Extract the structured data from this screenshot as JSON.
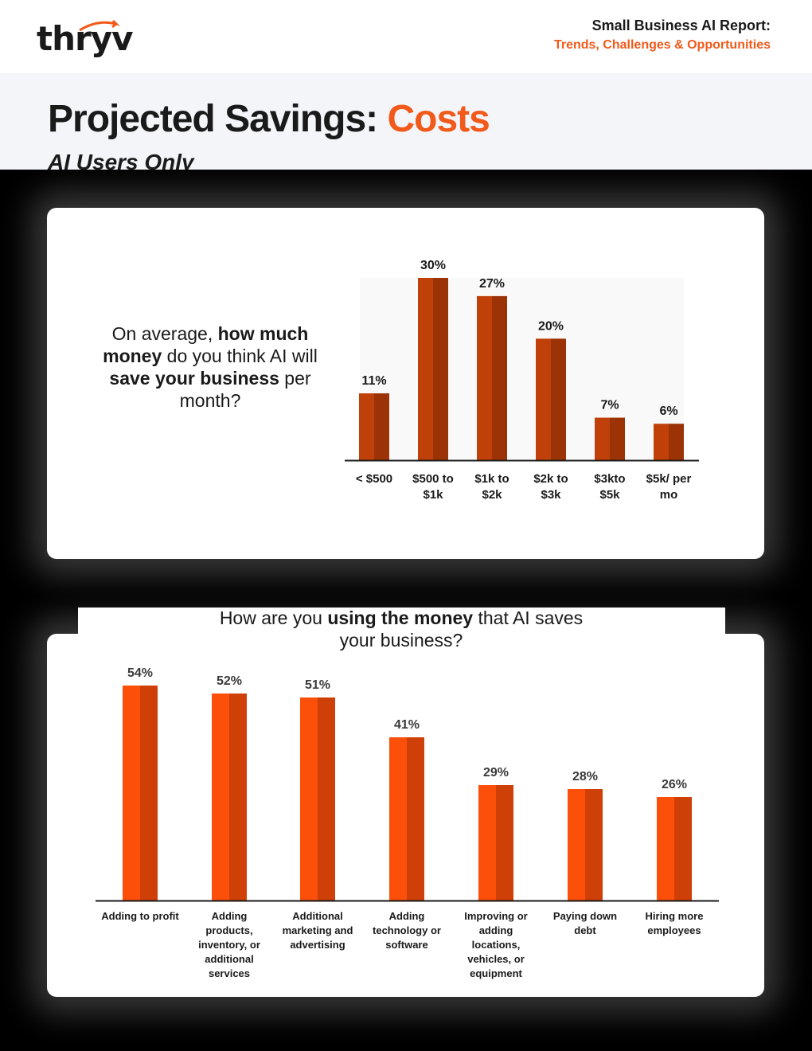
{
  "header": {
    "logo_text": "thryv",
    "report_title": "Small Business AI Report:",
    "report_subtitle": "Trends, Challenges & Opportunities"
  },
  "page": {
    "title_main": "Projected Savings: ",
    "title_accent": "Costs",
    "subtitle": "AI Users Only"
  },
  "colors": {
    "accent": "#f15a1a",
    "bar1": "#c0400a",
    "bar1_dark": "#9c3307",
    "bar2": "#fb4f0a",
    "bar2_dark": "#cf4008"
  },
  "chart_data": [
    {
      "type": "bar",
      "title": "On average, how much money do you think AI will save your business per month?",
      "title_parts": [
        "On average, ",
        "how much money",
        " do you think AI will ",
        "save your business",
        " per month?"
      ],
      "categories": [
        [
          "< $500"
        ],
        [
          "$500 to",
          "$1k"
        ],
        [
          "$1k to",
          "$2k"
        ],
        [
          "$2k to",
          "$3k"
        ],
        [
          "$3kto",
          "$5k"
        ],
        [
          "$5k/ per",
          "mo"
        ]
      ],
      "values": [
        11,
        30,
        27,
        20,
        7,
        6
      ],
      "labels": [
        "11%",
        "30%",
        "27%",
        "20%",
        "7%",
        "6%"
      ],
      "unit": "%",
      "ylim": [
        0,
        30
      ]
    },
    {
      "type": "bar",
      "title": "How are you using the money that AI saves your business?",
      "title_parts": [
        "How are you ",
        "using the money",
        " that AI saves your business?"
      ],
      "categories": [
        [
          "Adding to profit"
        ],
        [
          "Adding",
          "products,",
          "inventory, or",
          "additional",
          "services"
        ],
        [
          "Additional",
          "marketing and",
          "advertising"
        ],
        [
          "Adding",
          "technology or",
          "software"
        ],
        [
          "Improving or",
          "adding",
          "locations,",
          "vehicles, or",
          "equipment"
        ],
        [
          "Paying down",
          "debt"
        ],
        [
          "Hiring more",
          "employees"
        ]
      ],
      "values": [
        54,
        52,
        51,
        41,
        29,
        28,
        26
      ],
      "labels": [
        "54%",
        "52%",
        "51%",
        "41%",
        "29%",
        "28%",
        "26%"
      ],
      "unit": "%",
      "ylim": [
        0,
        54
      ]
    }
  ]
}
